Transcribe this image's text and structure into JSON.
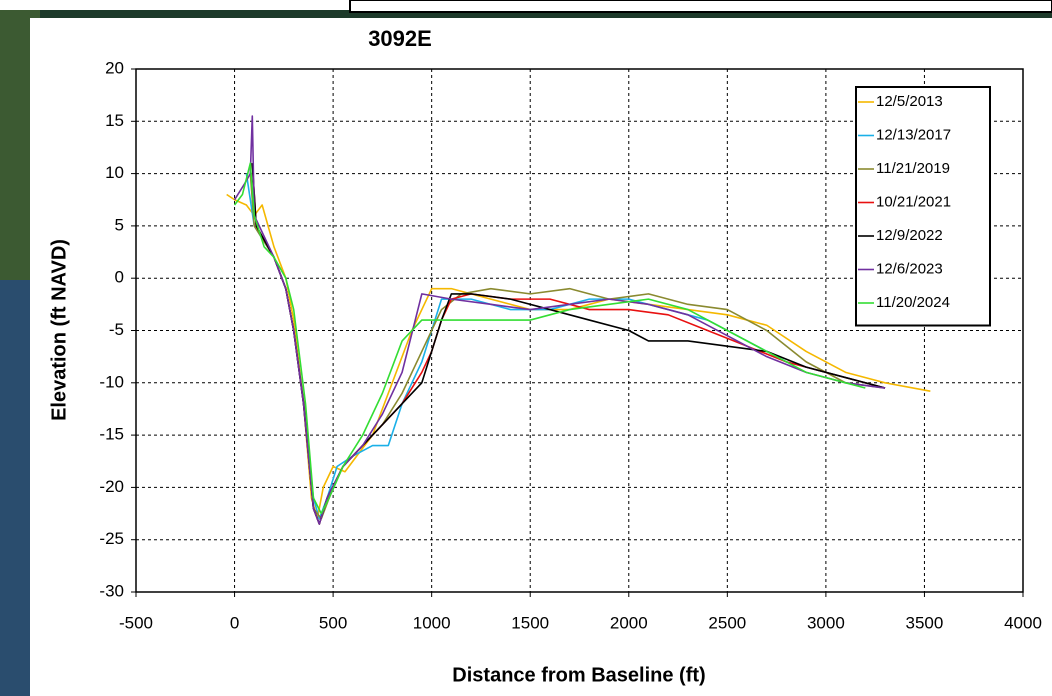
{
  "chart_data": {
    "type": "line",
    "title": "3092E",
    "xlabel": "Distance from Baseline (ft)",
    "ylabel": "Elevation (ft NAVD)",
    "xlim": [
      -500,
      4000
    ],
    "xticks": [
      -500,
      0,
      500,
      1000,
      1500,
      2000,
      2500,
      3000,
      3500,
      4000
    ],
    "ylim": [
      -30,
      20
    ],
    "yticks": [
      -30,
      -25,
      -20,
      -15,
      -10,
      -5,
      0,
      5,
      10,
      15,
      20
    ],
    "grid": true,
    "legend": "upper right",
    "series": [
      {
        "name": "12/5/2013",
        "color": "#f5b800",
        "x": [
          -40,
          0,
          60,
          100,
          140,
          200,
          260,
          300,
          350,
          390,
          420,
          450,
          500,
          560,
          620,
          700,
          800,
          900,
          1000,
          1100,
          1300,
          1500,
          1700,
          1900,
          2100,
          2300,
          2500,
          2700,
          2900,
          3100,
          3300,
          3530
        ],
        "values": [
          8,
          7.5,
          7,
          6,
          7,
          3,
          0,
          -4,
          -12,
          -21,
          -23,
          -20,
          -18,
          -18.5,
          -17,
          -15,
          -10,
          -5,
          -1,
          -1,
          -2,
          -3,
          -3,
          -2,
          -2.5,
          -3,
          -3.5,
          -4.5,
          -7,
          -9,
          -10,
          -10.8
        ]
      },
      {
        "name": "12/13/2017",
        "color": "#1ab0e8",
        "x": [
          60,
          100,
          200,
          260,
          300,
          350,
          400,
          430,
          470,
          520,
          600,
          700,
          780,
          850,
          900,
          950,
          1000,
          1050,
          1200,
          1400,
          1600,
          1800,
          2000,
          2200,
          2400,
          2600,
          2800,
          3000,
          3200,
          3300
        ],
        "values": [
          10,
          5,
          2,
          -1,
          -5,
          -12,
          -21,
          -23,
          -21,
          -18,
          -17,
          -16,
          -16,
          -12,
          -10,
          -8,
          -5,
          -2,
          -2,
          -3,
          -3,
          -2,
          -2,
          -3,
          -4,
          -6,
          -8,
          -9,
          -10,
          -10.5
        ]
      },
      {
        "name": "11/21/2019",
        "color": "#8a8a30",
        "x": [
          80,
          100,
          200,
          260,
          300,
          360,
          400,
          440,
          480,
          550,
          650,
          750,
          850,
          950,
          1050,
          1150,
          1300,
          1500,
          1700,
          1900,
          2100,
          2300,
          2500,
          2700,
          2900,
          3100,
          3300
        ],
        "values": [
          10,
          5,
          2,
          -1,
          -5,
          -13,
          -22,
          -23,
          -21,
          -18,
          -16,
          -14,
          -11,
          -7,
          -3,
          -1.5,
          -1,
          -1.5,
          -1,
          -2,
          -1.5,
          -2.5,
          -3,
          -5,
          -8,
          -10,
          -10.5
        ]
      },
      {
        "name": "10/21/2021",
        "color": "#e81010",
        "x": [
          90,
          110,
          200,
          260,
          300,
          350,
          400,
          430,
          470,
          550,
          650,
          750,
          850,
          950,
          1000,
          1050,
          1100,
          1200,
          1400,
          1600,
          1800,
          2000,
          2200,
          2400,
          2600,
          2800,
          3000,
          3200,
          3300
        ],
        "values": [
          11,
          5,
          2,
          -1,
          -5,
          -12,
          -22,
          -23.5,
          -21,
          -18,
          -16,
          -14,
          -12,
          -9,
          -7,
          -4,
          -2,
          -1.5,
          -2,
          -2,
          -3,
          -3,
          -3.5,
          -5,
          -6.5,
          -8,
          -9,
          -10,
          -10.5
        ]
      },
      {
        "name": "12/9/2022",
        "color": "#000000",
        "x": [
          90,
          110,
          200,
          260,
          300,
          350,
          400,
          430,
          470,
          550,
          650,
          750,
          850,
          950,
          1000,
          1050,
          1100,
          1200,
          1400,
          1600,
          1800,
          2000,
          2100,
          2300,
          2500,
          2700,
          2900,
          3100,
          3300
        ],
        "values": [
          11,
          5,
          2,
          -1,
          -5,
          -12,
          -22,
          -23.5,
          -21,
          -18,
          -16,
          -14,
          -12,
          -10,
          -7,
          -4,
          -1.5,
          -1.5,
          -2,
          -3,
          -4,
          -5,
          -6,
          -6,
          -6.5,
          -7,
          -8.5,
          -9.5,
          -10.5
        ]
      },
      {
        "name": "12/6/2023",
        "color": "#7030a0",
        "x": [
          0,
          50,
          80,
          90,
          100,
          200,
          260,
          300,
          350,
          400,
          430,
          470,
          550,
          650,
          750,
          850,
          950,
          1100,
          1300,
          1500,
          1700,
          1900,
          2100,
          2300,
          2500,
          2700,
          2900,
          3100,
          3300
        ],
        "values": [
          7.5,
          9,
          10,
          15.5,
          6,
          2,
          -1,
          -5,
          -12,
          -22,
          -23.5,
          -21,
          -18,
          -16,
          -13,
          -9,
          -1.5,
          -2,
          -2.5,
          -3,
          -2.5,
          -2,
          -2.5,
          -3.5,
          -5.5,
          -7.5,
          -9,
          -10,
          -10.5
        ]
      },
      {
        "name": "11/20/2024",
        "color": "#33dd33",
        "x": [
          0,
          40,
          80,
          100,
          150,
          200,
          260,
          300,
          360,
          400,
          440,
          480,
          550,
          650,
          750,
          850,
          950,
          1100,
          1300,
          1500,
          1700,
          1900,
          2100,
          2300,
          2500,
          2700,
          2900,
          3100,
          3200
        ],
        "values": [
          7,
          8,
          11,
          6,
          3,
          2,
          0,
          -3,
          -12,
          -21,
          -22.5,
          -21,
          -18,
          -15,
          -11,
          -6,
          -4,
          -4,
          -4,
          -4,
          -3,
          -2.5,
          -2,
          -3,
          -5,
          -7,
          -9,
          -10,
          -10.5
        ]
      }
    ]
  }
}
